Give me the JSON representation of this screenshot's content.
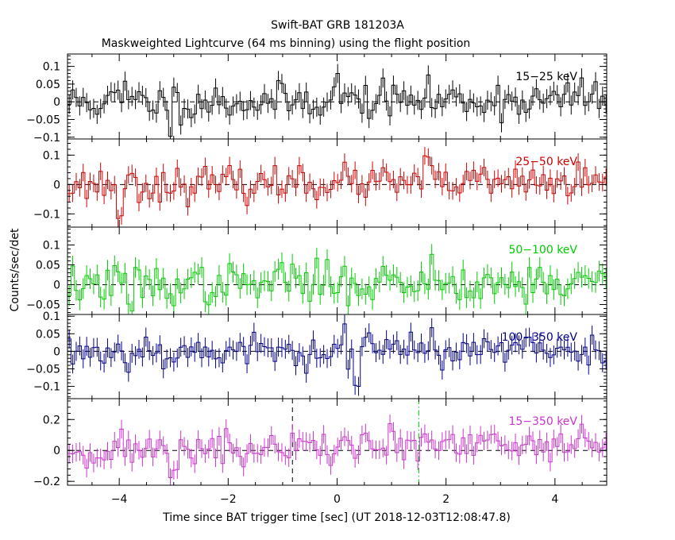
{
  "chart_data": {
    "type": "line",
    "title": "Swift-BAT GRB 181203A",
    "subtitle": "Maskweighted Lightcurve (64 ms binning) using the flight position",
    "xlabel": "Time since BAT trigger time [sec] (UT 2018-12-03T12:08:47.8)",
    "ylabel": "Counts/sec/det",
    "xlim": [
      -4.95,
      4.95
    ],
    "x_ticks": [
      "−4",
      "−2",
      "0",
      "2",
      "4"
    ],
    "x_tick_values": [
      -4,
      -2,
      0,
      2,
      4
    ],
    "bin_width_sec": 0.064,
    "markers": [
      {
        "x": -0.82,
        "style": "dashed",
        "color": "#000000",
        "panel": "15-350 keV"
      },
      {
        "x": 1.5,
        "style": "dashdot",
        "color": "#00cc00",
        "panel": "15-350 keV"
      }
    ],
    "panels": [
      {
        "name": "15−25 keV",
        "color": "#000000",
        "ylim": [
          -0.105,
          0.135
        ],
        "y_ticks": [
          "0.1",
          "0.05",
          "0",
          "−0.05",
          "−0.1"
        ],
        "y_tick_values": [
          0.1,
          0.05,
          0,
          -0.05,
          -0.1
        ],
        "base": 0.0,
        "trend": 0.005,
        "noise": 0.026,
        "err": 0.027,
        "features": [
          [
            0.0,
            0.085
          ],
          [
            -3.05,
            -0.085
          ],
          [
            -3.9,
            0.055
          ],
          [
            4.5,
            0.07
          ]
        ],
        "seed": 11
      },
      {
        "name": "25−50 keV",
        "color": "#cc0000",
        "ylim": [
          -0.145,
          0.155
        ],
        "y_ticks": [
          "0.1",
          "0",
          "−0.1"
        ],
        "y_tick_values": [
          0.1,
          0,
          -0.1
        ],
        "base": 0.0,
        "trend": 0.006,
        "noise": 0.028,
        "err": 0.03,
        "features": [
          [
            -0.65,
            0.05
          ],
          [
            1.65,
            0.08
          ],
          [
            -4.0,
            -0.1
          ]
        ],
        "seed": 23
      },
      {
        "name": "50−100 keV",
        "color": "#00cc00",
        "ylim": [
          -0.075,
          0.145
        ],
        "y_ticks": [
          "0.1",
          "0.05",
          "0",
          "−0.05"
        ],
        "y_tick_values": [
          0.1,
          0.05,
          0,
          -0.05
        ],
        "base": 0.0,
        "trend": 0.006,
        "noise": 0.025,
        "err": 0.026,
        "features": [
          [
            1.75,
            0.06
          ],
          [
            -1.05,
            0.05
          ],
          [
            -3.8,
            -0.05
          ]
        ],
        "seed": 37
      },
      {
        "name": "100−350 keV",
        "color": "#00008b",
        "ylim": [
          -0.135,
          0.105
        ],
        "y_ticks": [
          "0.1",
          "0.05",
          "0",
          "−0.05",
          "−0.1"
        ],
        "y_tick_values": [
          0.1,
          0.05,
          0,
          -0.05,
          -0.1
        ],
        "base": 0.0,
        "trend": 0.004,
        "noise": 0.025,
        "err": 0.027,
        "features": [
          [
            0.35,
            -0.1
          ],
          [
            0.15,
            0.06
          ],
          [
            1.75,
            0.075
          ]
        ],
        "seed": 53
      },
      {
        "name": "15−350 keV",
        "color": "#cc33cc",
        "ylim": [
          -0.225,
          0.335
        ],
        "y_ticks": [
          "0.2",
          "0",
          "−0.2"
        ],
        "y_tick_values": [
          0.2,
          0,
          -0.2
        ],
        "base": 0.0,
        "trend": 0.024,
        "noise": 0.06,
        "err": 0.06,
        "features": [
          [
            -3.05,
            -0.17
          ],
          [
            4.5,
            0.2
          ],
          [
            1.0,
            0.12
          ]
        ],
        "seed": 71
      }
    ]
  }
}
